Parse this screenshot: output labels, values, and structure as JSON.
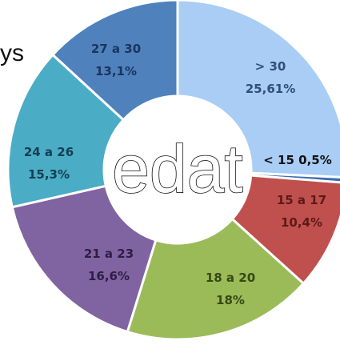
{
  "chart_data": {
    "type": "pie",
    "title": "",
    "center_text": "edat",
    "top_left_fragment": "ys",
    "slices": [
      {
        "label": "> 30",
        "value_text": "25,61%",
        "value": 25.61,
        "color": "#a9cdf5",
        "label_color": "#2f4f7a"
      },
      {
        "label": "< 15",
        "value_text": "0,5%",
        "value": 0.5,
        "color": "#3a6bb5",
        "label_color": "#1f3f70"
      },
      {
        "label": "15 a 17",
        "value_text": "10,4%",
        "value": 10.4,
        "color": "#c0504d",
        "label_color": "#5b1a18"
      },
      {
        "label": "18 a 20",
        "value_text": "18%",
        "value": 18,
        "color": "#9bbb59",
        "label_color": "#334a12"
      },
      {
        "label": "21 a 23",
        "value_text": "16,6%",
        "value": 16.6,
        "color": "#8064a2",
        "label_color": "#2c1e44"
      },
      {
        "label": "24 a 26",
        "value_text": "15,3%",
        "value": 15.3,
        "color": "#4bacc6",
        "label_color": "#123f52"
      },
      {
        "label": "27 a 30",
        "value_text": "13,1%",
        "value": 13.1,
        "color": "#4f81bd",
        "label_color": "#1a355c"
      }
    ]
  }
}
